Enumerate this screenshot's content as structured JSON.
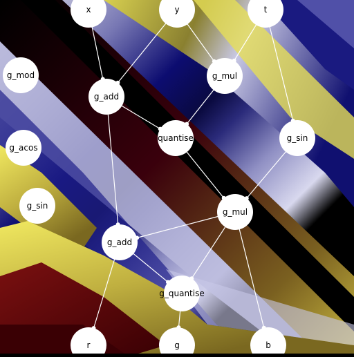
{
  "nodes": [
    {
      "id": "x",
      "label": "x"
    },
    {
      "id": "y",
      "label": "y"
    },
    {
      "id": "t",
      "label": "t"
    },
    {
      "id": "g_mod",
      "label": "g_mod"
    },
    {
      "id": "g_add_1",
      "label": "g_add"
    },
    {
      "id": "g_mul_1",
      "label": "g_mul"
    },
    {
      "id": "quantise_1",
      "label": "quantise"
    },
    {
      "id": "g_sin_1",
      "label": "g_sin"
    },
    {
      "id": "g_acos",
      "label": "g_acos"
    },
    {
      "id": "g_sin_2",
      "label": "g_sin"
    },
    {
      "id": "g_mul_2",
      "label": "g_mul"
    },
    {
      "id": "g_add_2",
      "label": "g_add"
    },
    {
      "id": "g_quantise",
      "label": "g_quantise"
    },
    {
      "id": "r",
      "label": "r"
    },
    {
      "id": "g",
      "label": "g"
    },
    {
      "id": "b",
      "label": "b"
    }
  ],
  "edges": [
    [
      "x",
      "g_add_1"
    ],
    [
      "y",
      "g_add_1"
    ],
    [
      "y",
      "g_mul_1"
    ],
    [
      "t",
      "g_mul_1"
    ],
    [
      "t",
      "g_sin_1"
    ],
    [
      "g_add_1",
      "quantise_1"
    ],
    [
      "g_mul_1",
      "quantise_1"
    ],
    [
      "g_add_1",
      "g_add_2"
    ],
    [
      "quantise_1",
      "g_mul_2"
    ],
    [
      "g_sin_1",
      "g_mul_2"
    ],
    [
      "g_mul_2",
      "g_add_2"
    ],
    [
      "g_mul_2",
      "g_quantise"
    ],
    [
      "g_mul_2",
      "b"
    ],
    [
      "g_add_2",
      "g_quantise"
    ],
    [
      "g_add_2",
      "r"
    ],
    [
      "g_quantise",
      "g"
    ]
  ],
  "colors": {
    "node_fill": "#ffffff",
    "edge": "#ffffff",
    "dark_red": "#4a0008",
    "yellow": "#e8e050",
    "navy": "#1a1a80",
    "lavender": "#c8c8e8",
    "black": "#000000"
  }
}
